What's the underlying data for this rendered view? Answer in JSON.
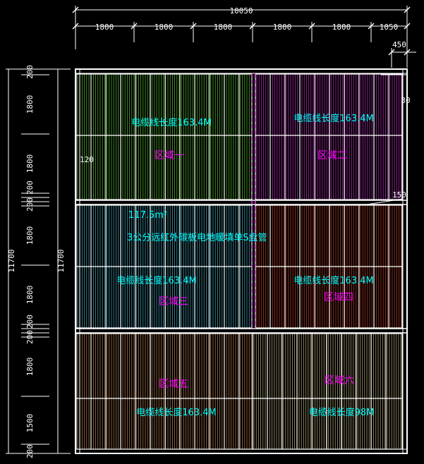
{
  "colors": {
    "background": "#000000",
    "dim": "#ffffff",
    "outline": "#ffffff",
    "label_magenta": "#ff00ff",
    "label_cyan": "#00ffff",
    "zone1": "#7cff4a",
    "zone2": "#ff44ff",
    "zone3": "#66e6ff",
    "zone4": "#ff5a3a",
    "zone5": "#ffb070",
    "zone6": "#ffeeaa",
    "divider_dash": "#ff66ff"
  },
  "top_dims": {
    "total": "10050",
    "segments": [
      "1800",
      "1800",
      "1800",
      "1800",
      "1800",
      "1050"
    ],
    "extra": "450"
  },
  "right_dims": {
    "top_small": "30",
    "mid": "150"
  },
  "left_dims": {
    "outer_total": "11700",
    "inner_total": "11700",
    "segments": [
      "200",
      "1800",
      "1800",
      "200",
      "200",
      "1800",
      "1800",
      "200",
      "200",
      "1800",
      "1500",
      "200"
    ]
  },
  "inner_dim": "120",
  "zones": [
    {
      "label": "区域一",
      "cable": "电缆线长度163.4M"
    },
    {
      "label": "区域二",
      "cable": "电缆线长度163.4M"
    },
    {
      "label": "区域三",
      "cable": "电缆线长度163.4M"
    },
    {
      "label": "区域四",
      "cable": "电缆线长度163.4M"
    },
    {
      "label": "区域五",
      "cable": "电缆线长度163.4M"
    },
    {
      "label": "区域六",
      "cable": "电缆线长度98M"
    }
  ],
  "note": {
    "area": "117.5m²",
    "desc": "3公分远红外碳板电地暖填单S盘管"
  }
}
